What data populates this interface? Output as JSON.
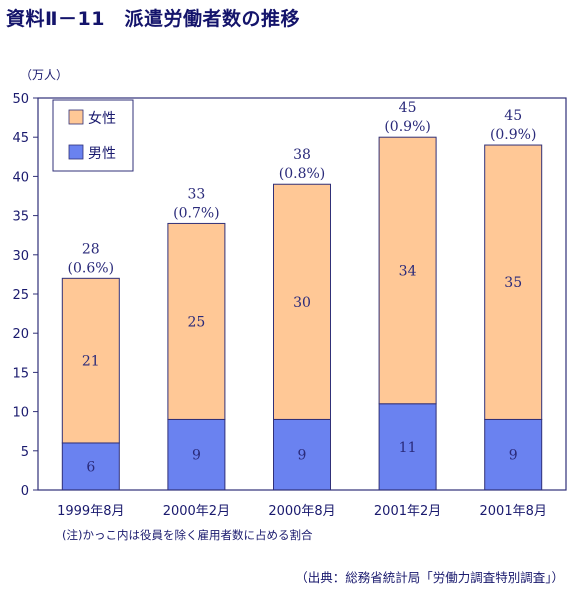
{
  "title": "資料Ⅱ－11　派遣労働者数の推移",
  "unit_label": "（万人）",
  "note": "(注)かっこ内は役員を除く雇用者数に占める割合",
  "source": "（出典：総務省統計局「労働力調査特別調査」）",
  "colors": {
    "female": "#ffc896",
    "male": "#6a82f0",
    "border": "#303078",
    "text": "#1a1a6e"
  },
  "chart_data": {
    "type": "bar",
    "stacked": true,
    "categories": [
      "1999年8月",
      "2000年2月",
      "2000年8月",
      "2001年2月",
      "2001年8月"
    ],
    "series": [
      {
        "name": "男性",
        "values": [
          6,
          9,
          9,
          11,
          9
        ]
      },
      {
        "name": "女性",
        "values": [
          21,
          25,
          30,
          34,
          35
        ]
      }
    ],
    "totals": [
      "28",
      "33",
      "38",
      "45",
      "45"
    ],
    "shares": [
      "(0.6%)",
      "(0.7%)",
      "(0.8%)",
      "(0.9%)",
      "(0.9%)"
    ],
    "ylim": [
      0,
      50
    ],
    "yticks": [
      0,
      5,
      10,
      15,
      20,
      25,
      30,
      35,
      40,
      45,
      50
    ],
    "legend": [
      "女性",
      "男性"
    ],
    "legend_position": "top-left",
    "grid": false
  }
}
